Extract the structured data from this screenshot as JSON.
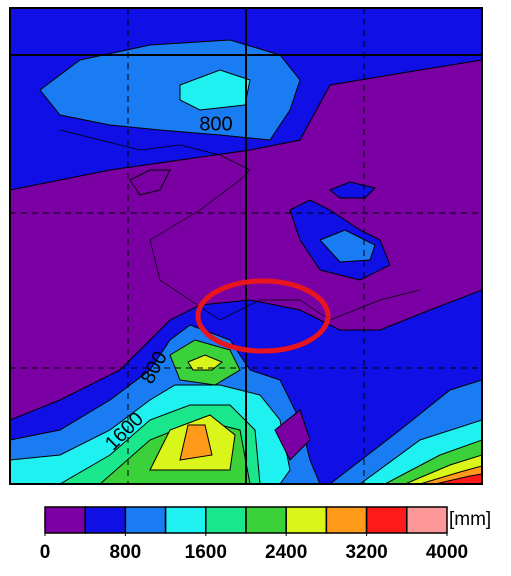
{
  "map": {
    "contour_labels": [
      "800",
      "800",
      "1600"
    ]
  },
  "colorbar": {
    "clim": [
      0,
      4000
    ],
    "ticks": [
      0,
      800,
      1600,
      2400,
      3200,
      4000
    ],
    "unit": "[mm]",
    "colors": [
      "#7a00a3",
      "#0f0fe6",
      "#1a7cf2",
      "#1ff0f0",
      "#1ae68c",
      "#3ad13a",
      "#d9f51a",
      "#ff9a1a",
      "#ff1a1a",
      "#ff9999"
    ]
  }
}
